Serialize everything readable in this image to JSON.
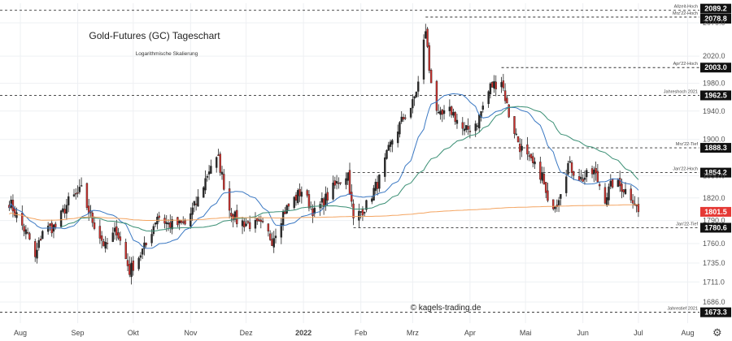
{
  "title": "Gold-Futures (GC) Tageschart",
  "subtitle": "Logarithmische Skalierung",
  "watermark": "© kagels-trading.de",
  "icons": {
    "settings": "gear-icon"
  },
  "colors": {
    "up_candle": "#2a2a2a",
    "down_candle": "#d0312d",
    "sma_fast": "#3a78c3",
    "sma_mid": "#3a8f74",
    "sma_slow": "#f4a460",
    "price_badge": "#e53935",
    "level_badge": "#111111"
  },
  "chart_data": {
    "type": "candlestick",
    "scale": "log",
    "ylim": [
      1660,
      2100
    ],
    "y_ticks": [
      "1686.0",
      "1711.0",
      "1735.0",
      "1760.0",
      "1790.0",
      "1820.0",
      "1850.0",
      "1900.0",
      "1940.0",
      "1980.0",
      "2020.0",
      "2070.0"
    ],
    "x_ticks": [
      "Aug",
      "Sep",
      "Okt",
      "Nov",
      "Dez",
      "2022",
      "Feb",
      "Mrz",
      "Apr",
      "Mai",
      "Jun",
      "Jul",
      "Aug"
    ],
    "grid": true,
    "current_price": "1801.5",
    "levels": [
      {
        "name": "Allzeit-Hoch",
        "value": "2089.2"
      },
      {
        "name": "Mrz'22-Hoch",
        "value": "2078.8"
      },
      {
        "name": "Apr'22-Hoch",
        "value": "2003.0"
      },
      {
        "name": "Jahreshoch 2021",
        "value": "1962.5"
      },
      {
        "name": "Mrz'22-Tief",
        "value": "1888.3"
      },
      {
        "name": "Jan'22-Hoch",
        "value": "1854.2"
      },
      {
        "name": "Jan'22-Tief",
        "value": "1780.6"
      },
      {
        "name": "Jahrestief 2021",
        "value": "1673.3"
      }
    ],
    "anchors": [
      [
        "2021-07-26",
        1815
      ],
      [
        "2021-08-06",
        1765
      ],
      [
        "2021-08-09",
        1740
      ],
      [
        "2021-08-13",
        1778
      ],
      [
        "2021-08-20",
        1782
      ],
      [
        "2021-08-27",
        1815
      ],
      [
        "2021-09-03",
        1830
      ],
      [
        "2021-09-08",
        1795
      ],
      [
        "2021-09-16",
        1755
      ],
      [
        "2021-09-22",
        1778
      ],
      [
        "2021-09-29",
        1725
      ],
      [
        "2021-10-08",
        1758
      ],
      [
        "2021-10-14",
        1797
      ],
      [
        "2021-10-20",
        1785
      ],
      [
        "2021-10-29",
        1785
      ],
      [
        "2021-11-05",
        1818
      ],
      [
        "2021-11-12",
        1865
      ],
      [
        "2021-11-16",
        1872
      ],
      [
        "2021-11-22",
        1805
      ],
      [
        "2021-11-26",
        1790
      ],
      [
        "2021-12-03",
        1785
      ],
      [
        "2021-12-10",
        1782
      ],
      [
        "2021-12-15",
        1765
      ],
      [
        "2021-12-21",
        1800
      ],
      [
        "2021-12-31",
        1830
      ],
      [
        "2022-01-07",
        1800
      ],
      [
        "2022-01-14",
        1822
      ],
      [
        "2022-01-20",
        1843
      ],
      [
        "2022-01-25",
        1853
      ],
      [
        "2022-01-28",
        1790
      ],
      [
        "2022-02-01",
        1802
      ],
      [
        "2022-02-04",
        1810
      ],
      [
        "2022-02-11",
        1845
      ],
      [
        "2022-02-18",
        1900
      ],
      [
        "2022-02-24",
        1930
      ],
      [
        "2022-03-01",
        1950
      ],
      [
        "2022-03-04",
        1980
      ],
      [
        "2022-03-08",
        2060
      ],
      [
        "2022-03-10",
        2000
      ],
      [
        "2022-03-15",
        1930
      ],
      [
        "2022-03-22",
        1940
      ],
      [
        "2022-03-29",
        1910
      ],
      [
        "2022-04-05",
        1925
      ],
      [
        "2022-04-12",
        1975
      ],
      [
        "2022-04-18",
        1985
      ],
      [
        "2022-04-22",
        1935
      ],
      [
        "2022-04-28",
        1890
      ],
      [
        "2022-05-03",
        1870
      ],
      [
        "2022-05-10",
        1850
      ],
      [
        "2022-05-13",
        1810
      ],
      [
        "2022-05-18",
        1815
      ],
      [
        "2022-05-24",
        1865
      ],
      [
        "2022-05-31",
        1845
      ],
      [
        "2022-06-07",
        1855
      ],
      [
        "2022-06-13",
        1820
      ],
      [
        "2022-06-17",
        1840
      ],
      [
        "2022-06-22",
        1835
      ],
      [
        "2022-06-28",
        1820
      ],
      [
        "2022-07-01",
        1801.5
      ]
    ]
  }
}
